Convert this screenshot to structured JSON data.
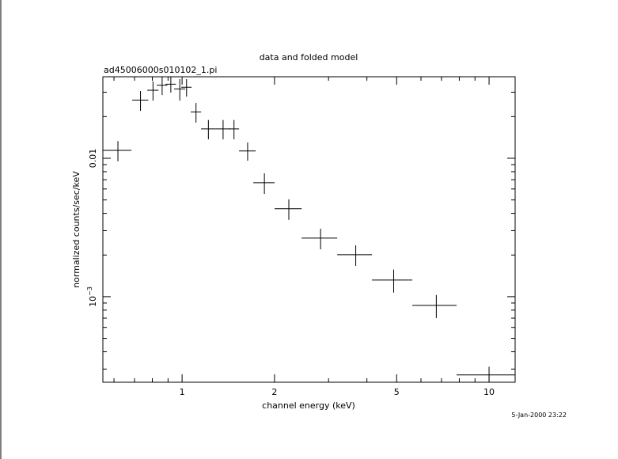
{
  "chart_data": {
    "type": "errorbar",
    "title": "data and folded model",
    "subtitle": "ad45006000s010102_1.pi",
    "x_label": "channel energy (keV)",
    "y_label": "normalized counts/sec/keV",
    "annotation": "5-Jan-2000 23:22",
    "log_x": true,
    "log_y": true,
    "color": "#000000",
    "xlim": [
      0.552,
      12.16
    ],
    "ylim": [
      0.000241,
      0.0388
    ],
    "xticks": [
      1,
      2,
      5,
      10
    ],
    "xminorticks": [
      0.6,
      0.7,
      0.8,
      0.9,
      3,
      4,
      6,
      7,
      8,
      9
    ],
    "yticks": [
      0.01,
      {
        "value": 0.001,
        "label": "10",
        "label_exponent": "−3"
      }
    ],
    "yminorticks": [
      0.0003,
      0.0004,
      0.0005,
      0.0006,
      0.0007,
      0.0008,
      0.0009,
      0.002,
      0.003,
      0.004,
      0.005,
      0.006,
      0.007,
      0.008,
      0.009,
      0.02,
      0.03
    ],
    "x": [
      0.618,
      0.732,
      0.804,
      0.861,
      0.919,
      0.983,
      1.034,
      1.11,
      1.218,
      1.36,
      1.476,
      1.635,
      1.854,
      2.227,
      2.826,
      3.679,
      4.89,
      6.732,
      10.0
    ],
    "xerr": [
      0.066,
      0.044,
      0.034,
      0.034,
      0.036,
      0.041,
      0.04,
      0.043,
      0.065,
      0.077,
      0.057,
      0.102,
      0.148,
      0.225,
      0.375,
      0.478,
      0.734,
      1.109,
      2.16
    ],
    "values": [
      0.0114,
      0.0263,
      0.031,
      0.0337,
      0.0343,
      0.0317,
      0.0326,
      0.0216,
      0.0163,
      0.0163,
      0.0163,
      0.0113,
      0.00666,
      0.00432,
      0.00265,
      0.00201,
      0.00132,
      0.000865,
      0.000272
    ],
    "yerr": [
      0.0019,
      0.0043,
      0.0049,
      0.0051,
      0.0045,
      0.0056,
      0.0047,
      0.0035,
      0.0026,
      0.0026,
      0.0026,
      0.0017,
      0.00113,
      0.00073,
      0.00045,
      0.00034,
      0.00025,
      0.000164,
      4e-05
    ]
  }
}
